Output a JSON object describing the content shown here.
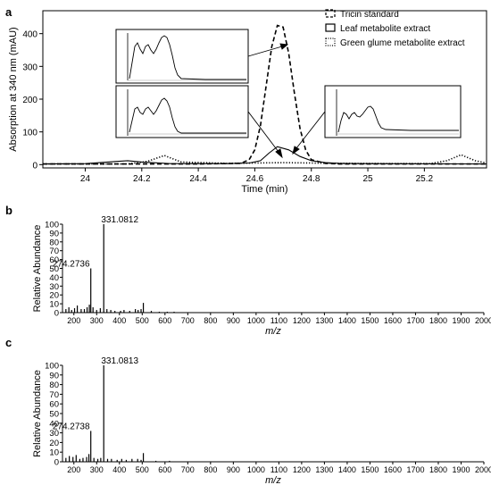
{
  "chart_data": [
    {
      "panel_label": "a",
      "type": "line",
      "xlabel": "Time (min)",
      "ylabel": "Absorption at 340 nm (mAU)",
      "xlim": [
        23.85,
        25.42
      ],
      "ylim": [
        -10,
        470
      ],
      "xticks": [
        24,
        24.2,
        24.4,
        24.6,
        24.8,
        25,
        25.2
      ],
      "xtick_labels": [
        "24",
        "24.2",
        "24.4",
        "24.6",
        "24.8",
        "25",
        "25.2"
      ],
      "yticks": [
        0,
        100,
        200,
        300,
        400
      ],
      "ytick_labels": [
        "0",
        "100",
        "200",
        "300",
        "400"
      ],
      "legend_position": "top-right",
      "grid": false,
      "series": [
        {
          "name": "Tricin standard",
          "style": "dashed",
          "x": [
            23.85,
            24.4,
            24.55,
            24.58,
            24.6,
            24.62,
            24.64,
            24.66,
            24.68,
            24.7,
            24.72,
            24.74,
            24.76,
            24.78,
            24.8,
            24.85,
            24.9,
            25.0,
            25.42
          ],
          "y": [
            2,
            2,
            4,
            15,
            45,
            120,
            240,
            360,
            425,
            420,
            340,
            220,
            110,
            45,
            15,
            4,
            2,
            2,
            2
          ]
        },
        {
          "name": "Leaf metabolite extract",
          "style": "solid",
          "x": [
            23.85,
            24.0,
            24.08,
            24.15,
            24.2,
            24.3,
            24.5,
            24.58,
            24.62,
            24.65,
            24.68,
            24.72,
            24.76,
            24.8,
            24.85,
            24.9,
            25.0,
            25.42
          ],
          "y": [
            2,
            3,
            8,
            12,
            8,
            3,
            3,
            5,
            12,
            35,
            55,
            45,
            25,
            12,
            6,
            4,
            3,
            2
          ]
        },
        {
          "name": "Green glume metabolite extract",
          "style": "dotted",
          "x": [
            23.85,
            24.15,
            24.22,
            24.28,
            24.34,
            24.5,
            24.6,
            24.7,
            24.8,
            24.9,
            25.1,
            25.22,
            25.28,
            25.33,
            25.38,
            25.42
          ],
          "y": [
            2,
            2,
            10,
            28,
            8,
            4,
            5,
            6,
            5,
            4,
            3,
            3,
            12,
            30,
            12,
            5
          ]
        }
      ]
    },
    {
      "panel_label": "b",
      "type": "bar",
      "xlabel": "m/z",
      "ylabel": "Relative Abundance",
      "xlim": [
        150,
        2000
      ],
      "ylim": [
        0,
        100
      ],
      "xticks": [
        200,
        300,
        400,
        500,
        600,
        700,
        800,
        900,
        1000,
        1100,
        1200,
        1300,
        1400,
        1500,
        1600,
        1700,
        1800,
        1900,
        2000
      ],
      "xtick_labels": [
        "200",
        "300",
        "400",
        "500",
        "600",
        "700",
        "800",
        "900",
        "1000",
        "1100",
        "1200",
        "1300",
        "1400",
        "1500",
        "1600",
        "1700",
        "1800",
        "1900",
        "2000"
      ],
      "yticks": [
        0,
        10,
        20,
        30,
        40,
        50,
        60,
        70,
        80,
        90,
        100
      ],
      "ytick_labels": [
        "0",
        "10",
        "20",
        "30",
        "40",
        "50",
        "60",
        "70",
        "80",
        "90",
        "100"
      ],
      "peaks": {
        "x": [
          165,
          178,
          190,
          203,
          215,
          232,
          246,
          258,
          268,
          274.27,
          284,
          300,
          316,
          331.08,
          345,
          362,
          380,
          405,
          420,
          445,
          470,
          482,
          495,
          505,
          540,
          575,
          610,
          640
        ],
        "y": [
          4,
          6,
          3,
          5,
          8,
          4,
          4,
          6,
          9,
          50,
          6,
          3,
          5,
          100,
          4,
          3,
          2,
          2,
          3,
          2,
          4,
          3,
          4,
          11,
          2,
          1,
          1,
          1
        ]
      },
      "annotations": [
        {
          "x": 331.0812,
          "y": 100,
          "text": "331.0812"
        },
        {
          "x": 274.2736,
          "y": 50,
          "text": "274.2736"
        }
      ]
    },
    {
      "panel_label": "c",
      "type": "bar",
      "xlabel": "m/z",
      "ylabel": "Relative Abundance",
      "xlim": [
        150,
        2000
      ],
      "ylim": [
        0,
        100
      ],
      "xticks": [
        200,
        300,
        400,
        500,
        600,
        700,
        800,
        900,
        1000,
        1100,
        1200,
        1300,
        1400,
        1500,
        1600,
        1700,
        1800,
        1900,
        2000
      ],
      "xtick_labels": [
        "200",
        "300",
        "400",
        "500",
        "600",
        "700",
        "800",
        "900",
        "1000",
        "1100",
        "1200",
        "1300",
        "1400",
        "1500",
        "1600",
        "1700",
        "1800",
        "1900",
        "2000"
      ],
      "yticks": [
        0,
        10,
        20,
        30,
        40,
        50,
        60,
        70,
        80,
        90,
        100
      ],
      "ytick_labels": [
        "0",
        "10",
        "20",
        "30",
        "40",
        "50",
        "60",
        "70",
        "80",
        "90",
        "100"
      ],
      "peaks": {
        "x": [
          165,
          180,
          196,
          210,
          226,
          240,
          256,
          266,
          274.27,
          288,
          305,
          318,
          331.08,
          348,
          365,
          390,
          410,
          430,
          455,
          480,
          495,
          505,
          560,
          620
        ],
        "y": [
          4,
          6,
          5,
          7,
          3,
          4,
          5,
          8,
          32,
          4,
          3,
          4,
          100,
          3,
          3,
          2,
          3,
          2,
          3,
          3,
          2,
          9,
          1,
          1
        ]
      },
      "annotations": [
        {
          "x": 331.0813,
          "y": 100,
          "text": "331.0813"
        },
        {
          "x": 274.2738,
          "y": 32,
          "text": "274.2738"
        }
      ]
    }
  ]
}
